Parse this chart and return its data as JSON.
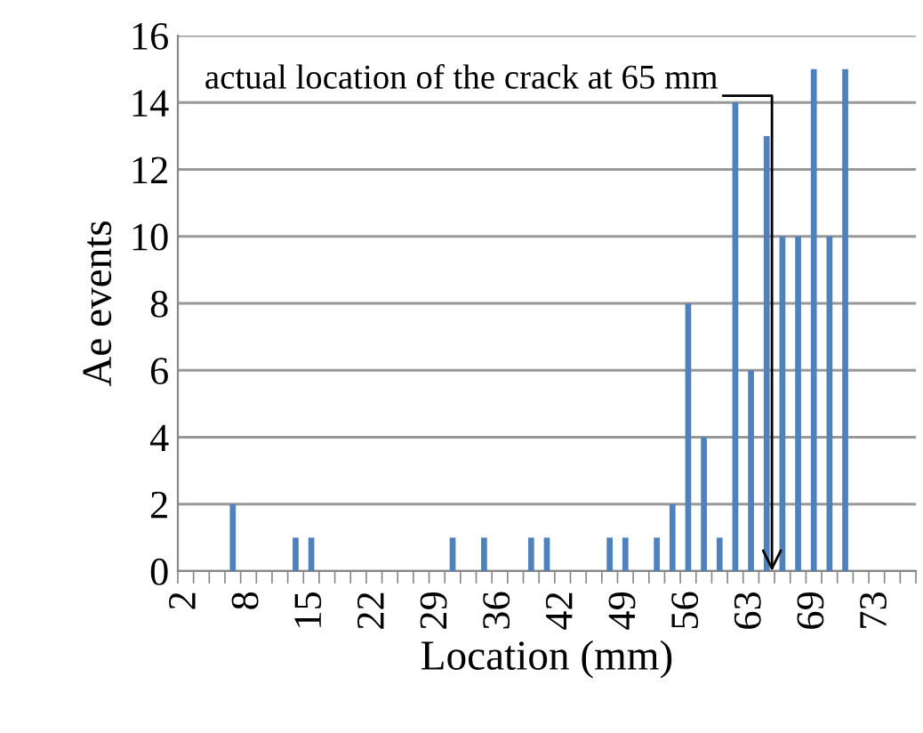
{
  "chart_data": {
    "type": "bar",
    "xlabel": "Location (mm)",
    "ylabel": "Ae events",
    "categories": [
      "2",
      null,
      null,
      null,
      "8",
      null,
      null,
      null,
      "15",
      null,
      null,
      null,
      "22",
      null,
      null,
      null,
      "29",
      null,
      null,
      null,
      "36",
      null,
      null,
      null,
      "42",
      null,
      null,
      null,
      "49",
      null,
      null,
      null,
      "56",
      null,
      null,
      null,
      "63",
      null,
      null,
      null,
      "69",
      null,
      null,
      null,
      "73",
      null,
      null
    ],
    "series": [
      {
        "color": "#4f81bd",
        "values": [
          0,
          0,
          0,
          2,
          0,
          0,
          0,
          1,
          1,
          0,
          0,
          0,
          0,
          0,
          0,
          0,
          0,
          1,
          0,
          1,
          0,
          0,
          1,
          1,
          0,
          0,
          0,
          1,
          1,
          0,
          1,
          2,
          8,
          4,
          1,
          14,
          6,
          13,
          10,
          10,
          15,
          10,
          15,
          0,
          0,
          0,
          0
        ]
      }
    ],
    "ylim": [
      0,
      16
    ],
    "yticks": [
      0,
      2,
      4,
      6,
      8,
      10,
      12,
      14,
      16
    ],
    "grid": "y",
    "legend": false,
    "annotations": [
      "actual location of the crack at 65 mm"
    ]
  }
}
